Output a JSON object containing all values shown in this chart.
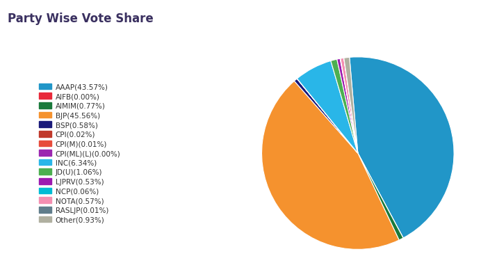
{
  "title": "Party Wise Vote Share",
  "title_bg": "#ccc5e8",
  "bg_color": "#ffffff",
  "outer_bg": "#f5f3fc",
  "parties": [
    "AAAP",
    "AIFB",
    "AIMIM",
    "BJP",
    "BSP",
    "CPI",
    "CPI(M)",
    "CPI(ML)(L)",
    "INC",
    "JD(U)",
    "LJPRV",
    "NCP",
    "NOTA",
    "RASLJP",
    "Other"
  ],
  "values": [
    43.57,
    0.003,
    0.77,
    45.56,
    0.58,
    0.02,
    0.01,
    0.003,
    6.34,
    1.06,
    0.53,
    0.06,
    0.57,
    0.01,
    0.93
  ],
  "colors": [
    "#2196c8",
    "#e8293a",
    "#1a7a3c",
    "#f5922e",
    "#1a1a7a",
    "#c0392b",
    "#e74c3c",
    "#9b27b0",
    "#29b6e8",
    "#4caf50",
    "#9c1ab0",
    "#00bcd4",
    "#f48fb1",
    "#607d8b",
    "#b0b0a0"
  ],
  "legend_labels": [
    "AAAP(43.57%)",
    "AIFB(0.00%)",
    "AIMIM(0.77%)",
    "BJP(45.56%)",
    "BSP(0.58%)",
    "CPI(0.02%)",
    "CPI(M)(0.01%)",
    "CPI(ML)(L)(0.00%)",
    "INC(6.34%)",
    "JD(U)(1.06%)",
    "LJPRV(0.53%)",
    "NCP(0.06%)",
    "NOTA(0.57%)",
    "RASLJP(0.01%)",
    "Other(0.93%)"
  ],
  "startangle": 95,
  "title_fontsize": 12,
  "legend_fontsize": 7.5
}
